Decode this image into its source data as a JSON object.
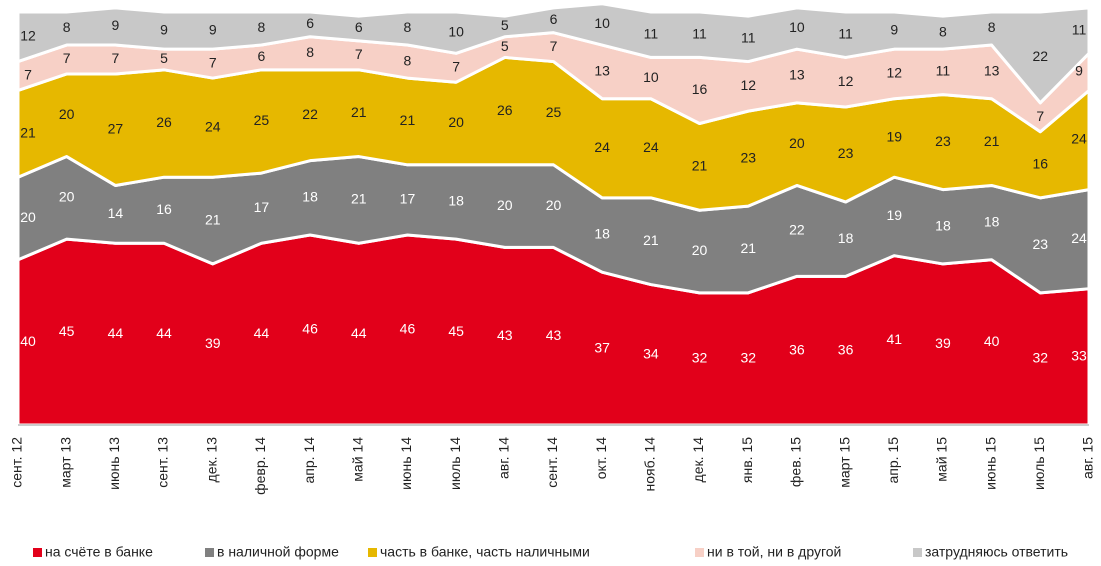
{
  "chart_data": {
    "type": "stacked_area",
    "categories": [
      "сент. 12",
      "март 13",
      "июнь 13",
      "сент. 13",
      "дек. 13",
      "февр. 14",
      "апр. 14",
      "май 14",
      "июнь 14",
      "июль 14",
      "авг. 14",
      "сент. 14",
      "окт. 14",
      "нояб. 14",
      "дек. 14",
      "янв. 15",
      "фев. 15",
      "март 15",
      "апр. 15",
      "май 15",
      "июнь 15",
      "июль 15",
      "авг. 15"
    ],
    "series": [
      {
        "name": "на счёте в банке",
        "color": "#e2001a",
        "values": [
          40,
          45,
          44,
          44,
          39,
          44,
          46,
          44,
          46,
          45,
          43,
          43,
          37,
          34,
          32,
          32,
          36,
          36,
          41,
          39,
          40,
          32,
          33
        ]
      },
      {
        "name": "в наличной форме",
        "color": "#808080",
        "values": [
          20,
          20,
          14,
          16,
          21,
          17,
          18,
          21,
          17,
          18,
          20,
          20,
          18,
          21,
          20,
          21,
          22,
          18,
          19,
          18,
          18,
          23,
          24
        ]
      },
      {
        "name": "часть в банке, часть наличными",
        "color": "#e6b800",
        "values": [
          21,
          20,
          27,
          26,
          24,
          25,
          22,
          21,
          21,
          20,
          26,
          25,
          24,
          24,
          21,
          23,
          20,
          23,
          19,
          23,
          21,
          16,
          24
        ]
      },
      {
        "name": "ни в той, ни в другой",
        "color": "#f7d0c6",
        "values": [
          7,
          7,
          7,
          5,
          7,
          6,
          8,
          7,
          8,
          7,
          5,
          7,
          13,
          10,
          16,
          12,
          13,
          12,
          12,
          11,
          13,
          7,
          9
        ]
      },
      {
        "name": "затрудняюсь ответить",
        "color": "#c8c8c8",
        "values": [
          12,
          8,
          9,
          9,
          9,
          8,
          6,
          6,
          8,
          10,
          5,
          6,
          10,
          11,
          11,
          11,
          10,
          11,
          9,
          8,
          8,
          22,
          11
        ]
      }
    ],
    "ylim": [
      0,
      100
    ]
  }
}
